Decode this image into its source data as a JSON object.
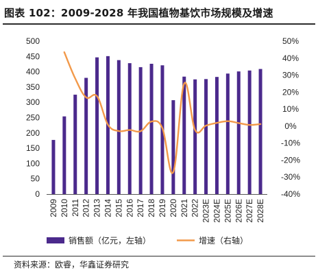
{
  "title": "图表 102：2009-2028 年我国植物基饮市场规模及增速",
  "source": "资料来源：欧睿，华鑫证券研究",
  "colors": {
    "bar": "#4B2A8C",
    "line": "#F2994A"
  },
  "chart_data": {
    "type": "bar",
    "categories": [
      "2009",
      "2010",
      "2011",
      "2012",
      "2013",
      "2014",
      "2015",
      "2016",
      "2017",
      "2018",
      "2019",
      "2020",
      "2021",
      "2022",
      "2023E",
      "2024E",
      "2025E",
      "2026E",
      "2027E",
      "2028E"
    ],
    "series": [
      {
        "name": "销售额（亿元，左轴）",
        "type": "bar",
        "axis": "left",
        "values": [
          177,
          254,
          325,
          380,
          447,
          451,
          438,
          428,
          415,
          426,
          421,
          307,
          384,
          375,
          376,
          383,
          394,
          401,
          404,
          409
        ]
      },
      {
        "name": "增速（右轴）",
        "type": "line",
        "axis": "right",
        "values": [
          null,
          43.5,
          28.0,
          16.9,
          17.6,
          0.9,
          -2.9,
          -2.3,
          -3.0,
          2.7,
          -1.2,
          -27.1,
          25.1,
          -2.3,
          0.3,
          1.9,
          2.9,
          1.8,
          0.7,
          1.2
        ]
      }
    ],
    "y_left": {
      "ticks": [
        "0",
        "50",
        "100",
        "150",
        "200",
        "250",
        "300",
        "350",
        "400",
        "450",
        "500"
      ],
      "ylim": [
        0,
        500
      ]
    },
    "y_right": {
      "ticks": [
        "-40%",
        "-30%",
        "-20%",
        "-10%",
        "0%",
        "10%",
        "20%",
        "30%",
        "40%",
        "50%"
      ],
      "ylim": [
        -40,
        50
      ]
    },
    "legend": {
      "position": "bottom"
    },
    "grid": false
  }
}
